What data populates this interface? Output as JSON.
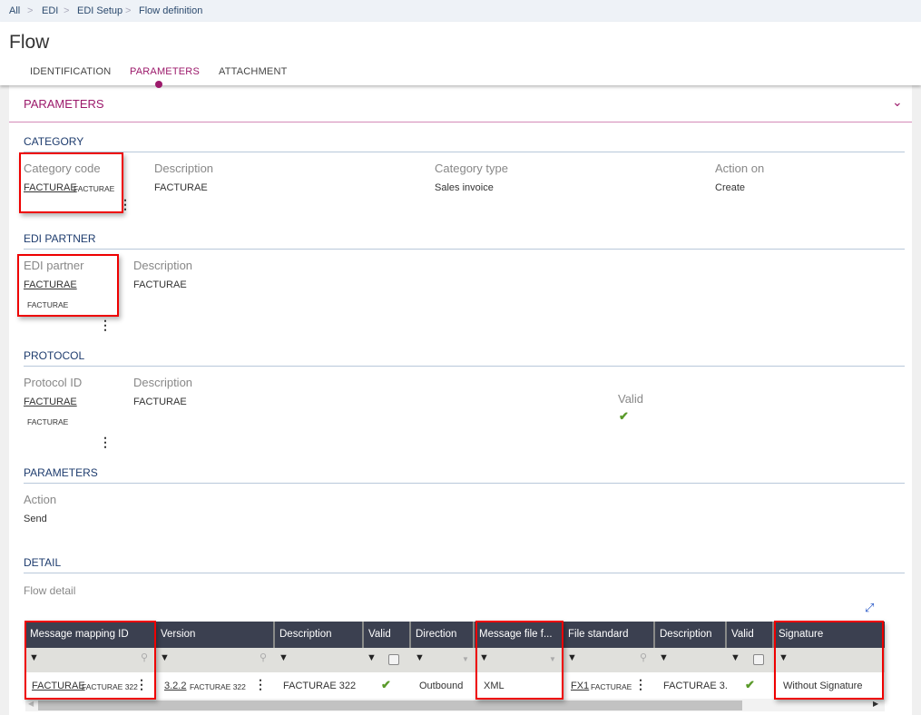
{
  "breadcrumb": [
    "All",
    "EDI",
    "EDI Setup",
    "Flow definition"
  ],
  "title": "Flow",
  "tabs": [
    {
      "label": "IDENTIFICATION"
    },
    {
      "label": "PARAMETERS",
      "active": true
    },
    {
      "label": "ATTACHMENT"
    }
  ],
  "panel_title": "PARAMETERS",
  "category": {
    "heading": "CATEGORY",
    "code_label": "Category code",
    "code": "FACTURAE",
    "code_desc": "FACTURAE",
    "desc_label": "Description",
    "desc": "FACTURAE",
    "type_label": "Category type",
    "type": "Sales invoice",
    "action_label": "Action on",
    "action": "Create"
  },
  "edi_partner": {
    "heading": "EDI PARTNER",
    "label": "EDI partner",
    "code": "FACTURAE",
    "code_desc": "FACTURAE",
    "desc_label": "Description",
    "desc": "FACTURAE"
  },
  "protocol": {
    "heading": "PROTOCOL",
    "label": "Protocol ID",
    "code": "FACTURAE",
    "code_desc": "FACTURAE",
    "desc_label": "Description",
    "desc": "FACTURAE",
    "valid_label": "Valid"
  },
  "parameters": {
    "heading": "PARAMETERS",
    "action_label": "Action",
    "action": "Send"
  },
  "detail": {
    "heading": "DETAIL",
    "grid_title": "Flow detail",
    "columns": [
      "Message mapping ID",
      "Version",
      "Description",
      "Valid",
      "Direction",
      "Message file f...",
      "File standard",
      "Description",
      "Valid",
      "Signature"
    ],
    "row": {
      "mapping": "FACTURAE",
      "mapping_desc": "FACTURAE 322",
      "version": "3.2.2",
      "version_desc": "FACTURAE 322",
      "description": "FACTURAE 322",
      "valid": true,
      "direction": "Outbound",
      "file_format": "XML",
      "file_standard": "FX1",
      "file_standard_desc": "FACTURAE",
      "fs_description": "FACTURAE 3.",
      "fs_valid": true,
      "signature": "Without Signature"
    }
  },
  "colors": {
    "accent": "#9c1a6b",
    "header_bg": "#3b4050",
    "section": "#1e3c6e",
    "valid": "#5a9a2a",
    "highlight": "#e00000"
  }
}
